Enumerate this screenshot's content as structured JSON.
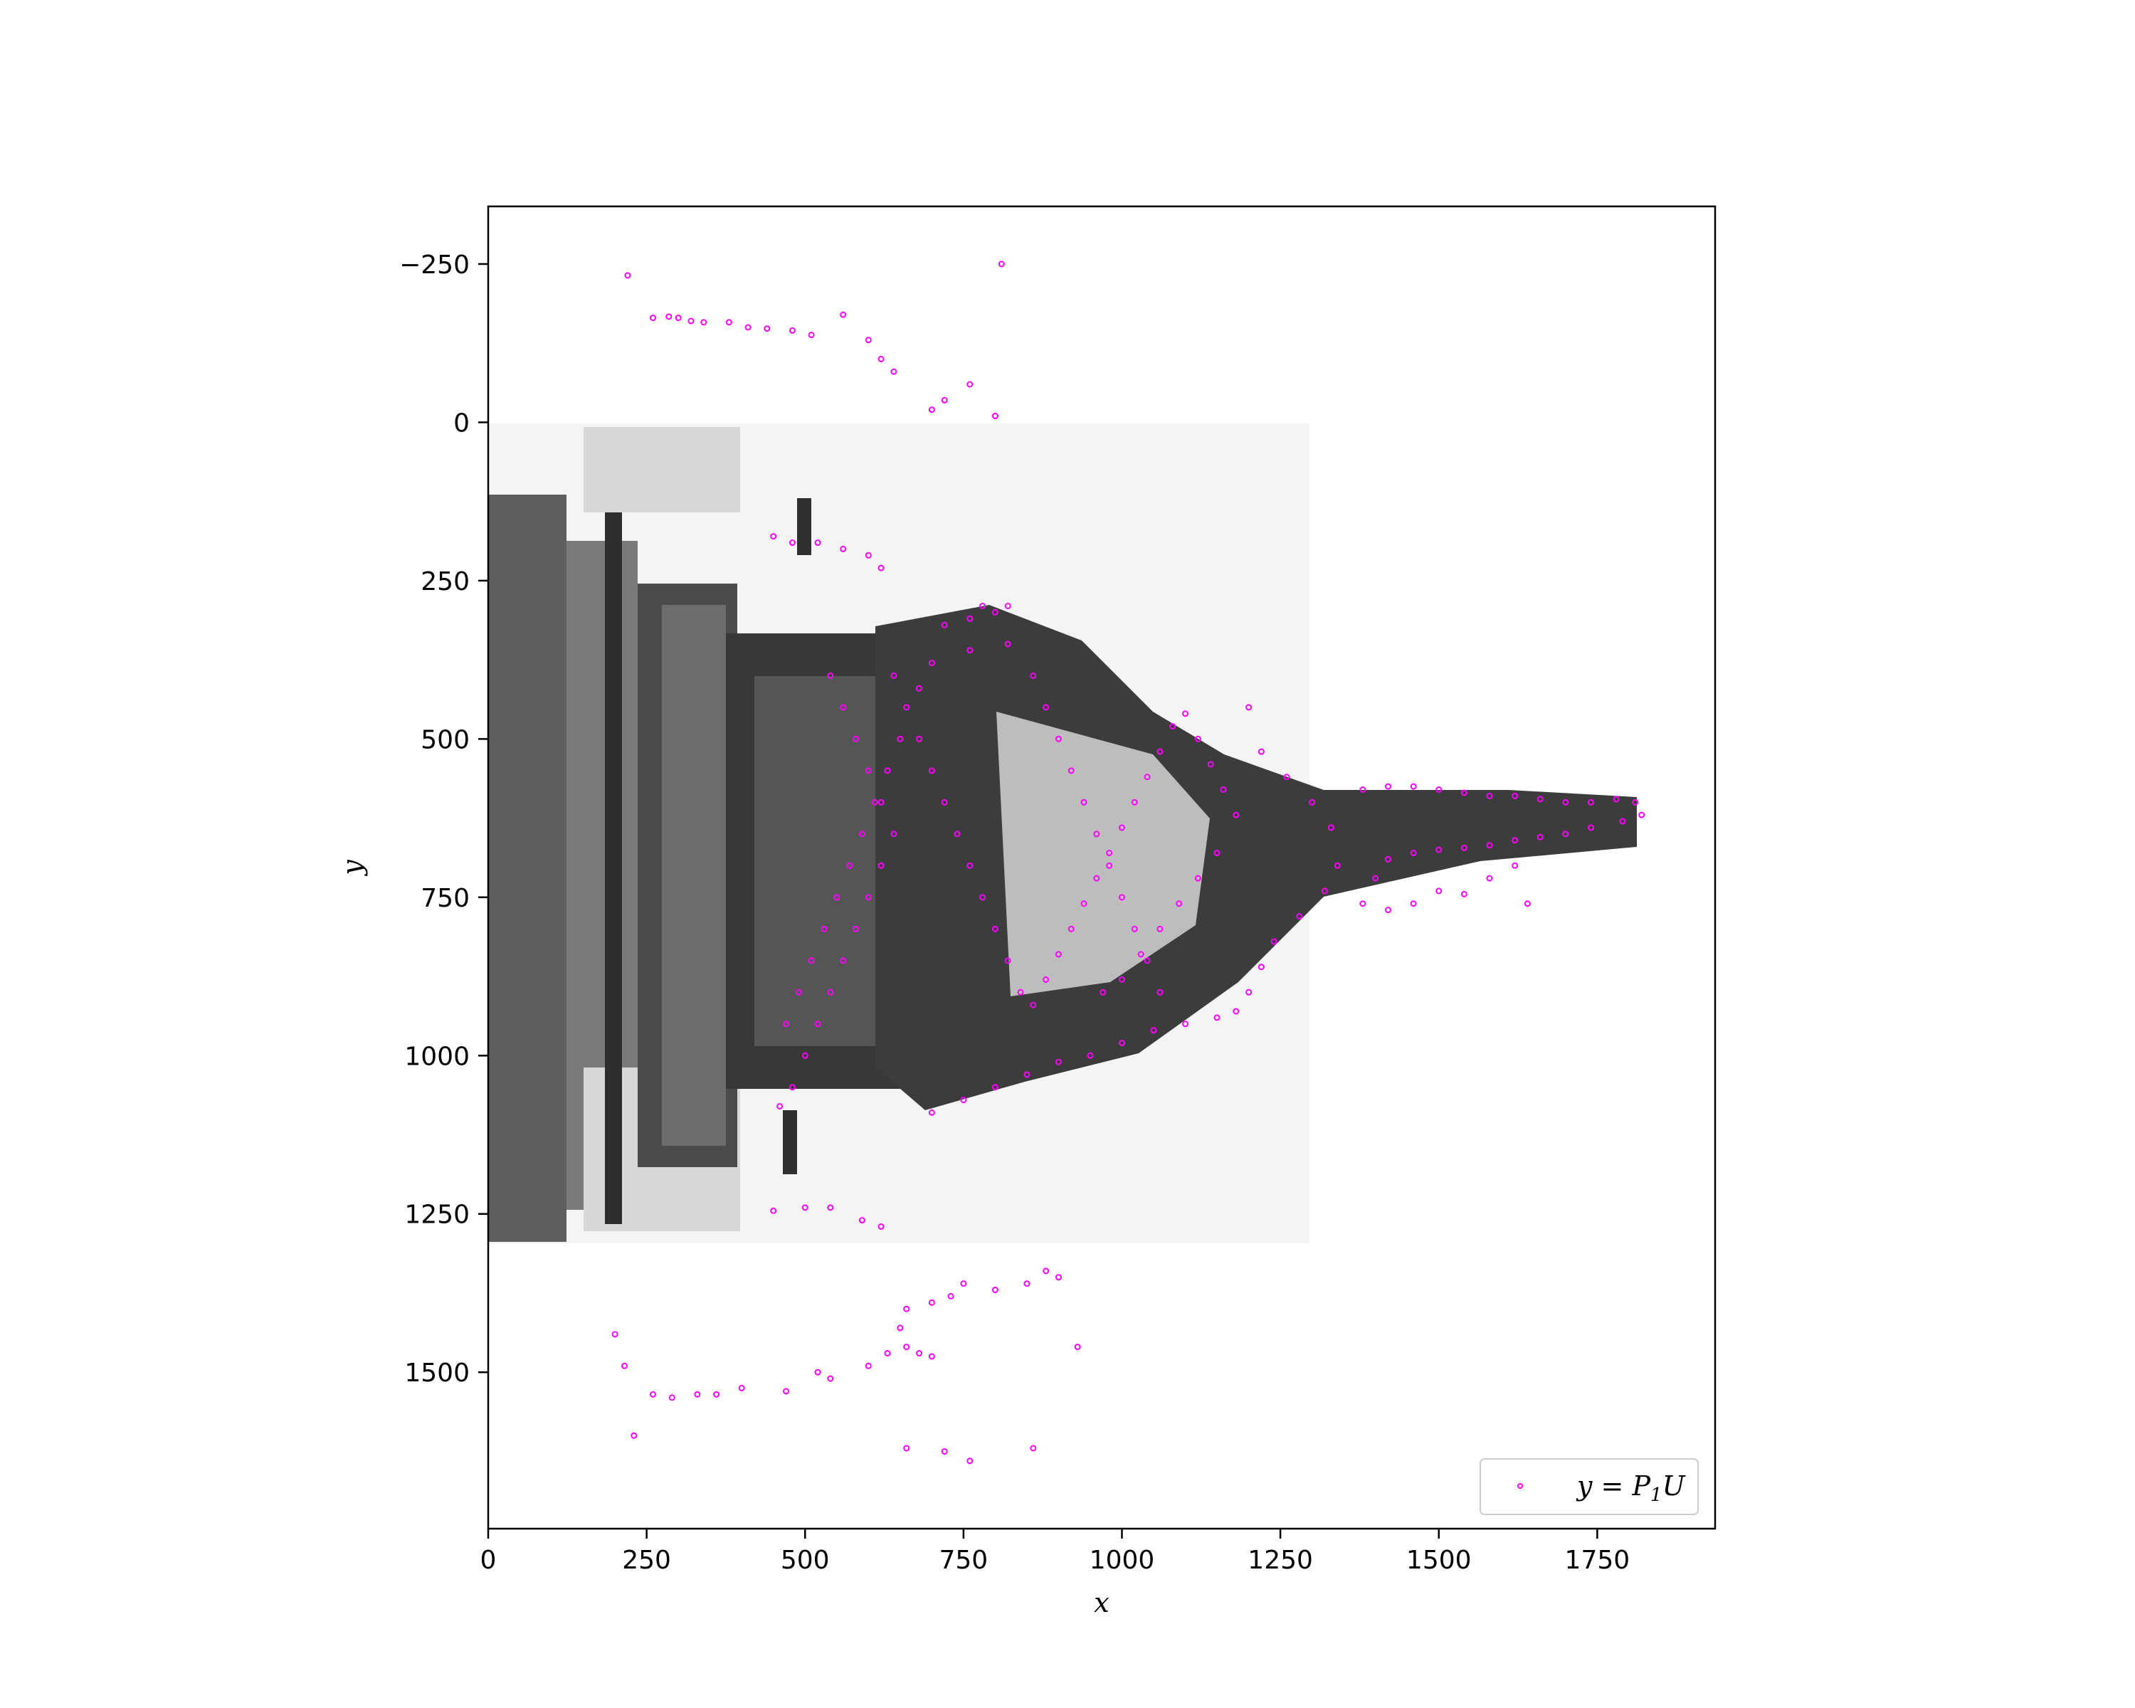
{
  "chart_data": {
    "type": "scatter",
    "title": "",
    "xlabel": "x",
    "ylabel": "y",
    "xlim": [
      0,
      1936
    ],
    "ylim": [
      1747,
      -341
    ],
    "y_inverted": true,
    "grid": false,
    "background_image": {
      "description_visible": "grayscale monument photo",
      "extent_x": [
        0,
        1296
      ],
      "extent_y": [
        0,
        1296
      ]
    },
    "x_ticks": [
      0,
      250,
      500,
      750,
      1000,
      1250,
      1500,
      1750
    ],
    "x_tick_labels": [
      "0",
      "250",
      "500",
      "750",
      "1000",
      "1250",
      "1500",
      "1750"
    ],
    "y_ticks": [
      -250,
      0,
      250,
      500,
      750,
      1000,
      1250,
      1500
    ],
    "y_tick_labels": [
      "−250",
      "0",
      "250",
      "500",
      "750",
      "1000",
      "1250",
      "1500"
    ],
    "legend": {
      "placement": "lower-right",
      "entries": [
        "y = P1U"
      ]
    },
    "series": [
      {
        "name": "y = P1U",
        "color": "#ff00ff",
        "marker": "small-circle",
        "points": [
          [
            220,
            -232
          ],
          [
            260,
            -165
          ],
          [
            285,
            -167
          ],
          [
            300,
            -165
          ],
          [
            320,
            -160
          ],
          [
            340,
            -158
          ],
          [
            380,
            -158
          ],
          [
            410,
            -150
          ],
          [
            440,
            -148
          ],
          [
            480,
            -145
          ],
          [
            510,
            -138
          ],
          [
            560,
            -170
          ],
          [
            600,
            -130
          ],
          [
            620,
            -100
          ],
          [
            640,
            -80
          ],
          [
            700,
            -20
          ],
          [
            720,
            -35
          ],
          [
            760,
            -60
          ],
          [
            800,
            -10
          ],
          [
            810,
            -250
          ],
          [
            200,
            1440
          ],
          [
            215,
            1490
          ],
          [
            230,
            1600
          ],
          [
            260,
            1535
          ],
          [
            290,
            1540
          ],
          [
            330,
            1535
          ],
          [
            360,
            1535
          ],
          [
            400,
            1525
          ],
          [
            470,
            1530
          ],
          [
            520,
            1500
          ],
          [
            540,
            1510
          ],
          [
            600,
            1490
          ],
          [
            630,
            1470
          ],
          [
            660,
            1460
          ],
          [
            680,
            1470
          ],
          [
            700,
            1475
          ],
          [
            650,
            1430
          ],
          [
            660,
            1400
          ],
          [
            700,
            1390
          ],
          [
            730,
            1380
          ],
          [
            750,
            1360
          ],
          [
            800,
            1370
          ],
          [
            850,
            1360
          ],
          [
            880,
            1340
          ],
          [
            900,
            1350
          ],
          [
            930,
            1460
          ],
          [
            760,
            1640
          ],
          [
            720,
            1625
          ],
          [
            660,
            1620
          ],
          [
            860,
            1620
          ],
          [
            450,
            180
          ],
          [
            480,
            190
          ],
          [
            520,
            190
          ],
          [
            560,
            200
          ],
          [
            600,
            210
          ],
          [
            620,
            230
          ],
          [
            450,
            1245
          ],
          [
            500,
            1240
          ],
          [
            540,
            1240
          ],
          [
            590,
            1260
          ],
          [
            620,
            1270
          ],
          [
            780,
            290
          ],
          [
            800,
            300
          ],
          [
            820,
            290
          ],
          [
            720,
            320
          ],
          [
            760,
            310
          ],
          [
            1380,
            580
          ],
          [
            1420,
            575
          ],
          [
            1460,
            575
          ],
          [
            1500,
            580
          ],
          [
            1540,
            585
          ],
          [
            1580,
            590
          ],
          [
            1620,
            590
          ],
          [
            1660,
            595
          ],
          [
            1700,
            600
          ],
          [
            1740,
            600
          ],
          [
            1780,
            595
          ],
          [
            1810,
            600
          ],
          [
            1820,
            620
          ],
          [
            1790,
            630
          ],
          [
            1740,
            640
          ],
          [
            1700,
            650
          ],
          [
            1660,
            655
          ],
          [
            1620,
            660
          ],
          [
            1580,
            668
          ],
          [
            1540,
            672
          ],
          [
            1500,
            675
          ],
          [
            1460,
            680
          ],
          [
            1420,
            690
          ],
          [
            1400,
            720
          ],
          [
            1380,
            760
          ],
          [
            1420,
            770
          ],
          [
            1460,
            760
          ],
          [
            1500,
            740
          ],
          [
            1540,
            745
          ],
          [
            1580,
            720
          ],
          [
            1620,
            700
          ],
          [
            1640,
            760
          ],
          [
            1200,
            450
          ],
          [
            1220,
            520
          ],
          [
            1260,
            560
          ],
          [
            1300,
            600
          ],
          [
            1330,
            640
          ],
          [
            1340,
            700
          ],
          [
            1320,
            740
          ],
          [
            1280,
            780
          ],
          [
            1240,
            820
          ],
          [
            1220,
            860
          ],
          [
            1200,
            900
          ],
          [
            1180,
            930
          ],
          [
            1150,
            940
          ],
          [
            1100,
            950
          ],
          [
            1050,
            960
          ],
          [
            1000,
            980
          ],
          [
            950,
            1000
          ],
          [
            900,
            1010
          ],
          [
            850,
            1030
          ],
          [
            800,
            1050
          ],
          [
            750,
            1070
          ],
          [
            700,
            1090
          ],
          [
            640,
            400
          ],
          [
            660,
            450
          ],
          [
            680,
            500
          ],
          [
            700,
            550
          ],
          [
            720,
            600
          ],
          [
            740,
            650
          ],
          [
            760,
            700
          ],
          [
            780,
            750
          ],
          [
            800,
            800
          ],
          [
            820,
            850
          ],
          [
            840,
            900
          ],
          [
            860,
            920
          ],
          [
            880,
            880
          ],
          [
            900,
            840
          ],
          [
            920,
            800
          ],
          [
            940,
            760
          ],
          [
            960,
            720
          ],
          [
            980,
            680
          ],
          [
            1000,
            640
          ],
          [
            1020,
            600
          ],
          [
            1040,
            560
          ],
          [
            1060,
            520
          ],
          [
            1080,
            480
          ],
          [
            1100,
            460
          ],
          [
            1120,
            500
          ],
          [
            1140,
            540
          ],
          [
            1160,
            580
          ],
          [
            1180,
            620
          ],
          [
            1150,
            680
          ],
          [
            1120,
            720
          ],
          [
            1090,
            760
          ],
          [
            1060,
            800
          ],
          [
            1030,
            840
          ],
          [
            1000,
            880
          ],
          [
            970,
            900
          ],
          [
            540,
            400
          ],
          [
            560,
            450
          ],
          [
            580,
            500
          ],
          [
            600,
            550
          ],
          [
            620,
            600
          ],
          [
            640,
            650
          ],
          [
            620,
            700
          ],
          [
            600,
            750
          ],
          [
            580,
            800
          ],
          [
            560,
            850
          ],
          [
            540,
            900
          ],
          [
            520,
            950
          ],
          [
            500,
            1000
          ],
          [
            480,
            1050
          ],
          [
            460,
            1080
          ],
          [
            470,
            950
          ],
          [
            490,
            900
          ],
          [
            510,
            850
          ],
          [
            530,
            800
          ],
          [
            550,
            750
          ],
          [
            570,
            700
          ],
          [
            590,
            650
          ],
          [
            610,
            600
          ],
          [
            630,
            550
          ],
          [
            650,
            500
          ],
          [
            860,
            400
          ],
          [
            880,
            450
          ],
          [
            900,
            500
          ],
          [
            920,
            550
          ],
          [
            940,
            600
          ],
          [
            960,
            650
          ],
          [
            980,
            700
          ],
          [
            1000,
            750
          ],
          [
            1020,
            800
          ],
          [
            1040,
            850
          ],
          [
            1060,
            900
          ],
          [
            820,
            350
          ],
          [
            760,
            360
          ],
          [
            700,
            380
          ],
          [
            680,
            420
          ]
        ]
      }
    ]
  }
}
